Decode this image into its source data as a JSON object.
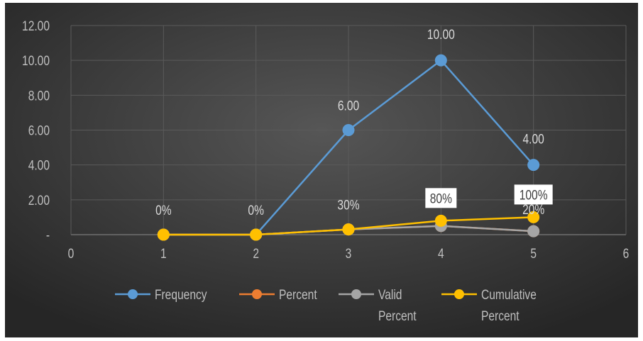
{
  "chart_data": {
    "type": "line",
    "title": "",
    "xlabel": "",
    "ylabel": "",
    "xlim": [
      0,
      6
    ],
    "ylim": [
      0,
      12
    ],
    "x_ticks": [
      "0",
      "1",
      "2",
      "3",
      "4",
      "5",
      "6"
    ],
    "y_ticks": [
      "-",
      "2.00",
      "4.00",
      "6.00",
      "8.00",
      "10.00",
      "12.00"
    ],
    "grid": true,
    "legend_position": "bottom",
    "x": [
      1,
      2,
      3,
      4,
      5
    ],
    "series": [
      {
        "name": "Frequency",
        "color": "#5b9bd5",
        "values": [
          0,
          0,
          6,
          10,
          4
        ],
        "labels": [
          "",
          "",
          "6.00",
          "10.00",
          "4.00"
        ]
      },
      {
        "name": "Percent",
        "color": "#ed7d31",
        "values": [
          0,
          0,
          0.3,
          0.5,
          0.2
        ],
        "labels": [
          "",
          "",
          "",
          "",
          ""
        ]
      },
      {
        "name": "Valid Percent",
        "color": "#a5a5a5",
        "values": [
          0,
          0,
          0.3,
          0.5,
          0.2
        ],
        "labels": [
          "",
          "",
          "",
          "",
          "20%"
        ]
      },
      {
        "name": "Cumulative Percent",
        "color": "#ffc000",
        "values": [
          0,
          0,
          0.3,
          0.8,
          1.0
        ],
        "labels": [
          "0%",
          "0%",
          "30%",
          "80%",
          "100%"
        ],
        "boxed_labels": [
          false,
          false,
          false,
          true,
          true
        ]
      }
    ],
    "legend": [
      {
        "line1": "Frequency",
        "line2": "",
        "color": "#5b9bd5"
      },
      {
        "line1": "Percent",
        "line2": "",
        "color": "#ed7d31"
      },
      {
        "line1": "Valid",
        "line2": "Percent",
        "color": "#a5a5a5"
      },
      {
        "line1": "Cumulative",
        "line2": "Percent",
        "color": "#ffc000"
      }
    ]
  }
}
